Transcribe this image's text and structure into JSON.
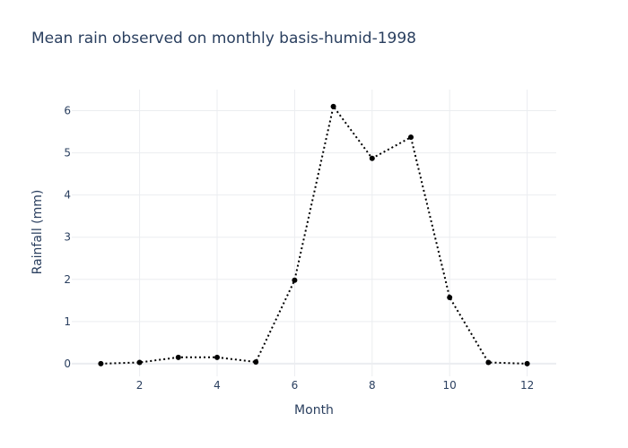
{
  "chart_data": {
    "type": "line",
    "title": "Mean rain observed on monthly basis-humid-1998",
    "xlabel": "Month",
    "ylabel": "Rainfall (mm)",
    "x": [
      1,
      2,
      3,
      4,
      5,
      6,
      7,
      8,
      9,
      10,
      11,
      12
    ],
    "series": [
      {
        "name": "Rainfall",
        "values": [
          0.0,
          0.03,
          0.15,
          0.15,
          0.04,
          1.98,
          6.1,
          4.87,
          5.37,
          1.57,
          0.03,
          0.0
        ],
        "color": "#000000",
        "line_style": "dotted",
        "markers": true
      }
    ],
    "xlim": [
      0.25,
      12.75
    ],
    "ylim": [
      -0.3,
      6.5
    ],
    "xticks": [
      2,
      4,
      6,
      8,
      10,
      12
    ],
    "yticks": [
      0,
      1,
      2,
      3,
      4,
      5,
      6
    ],
    "grid": true,
    "legend": false,
    "grid_color": "#ebedf0",
    "text_color": "#2a3f5f"
  }
}
